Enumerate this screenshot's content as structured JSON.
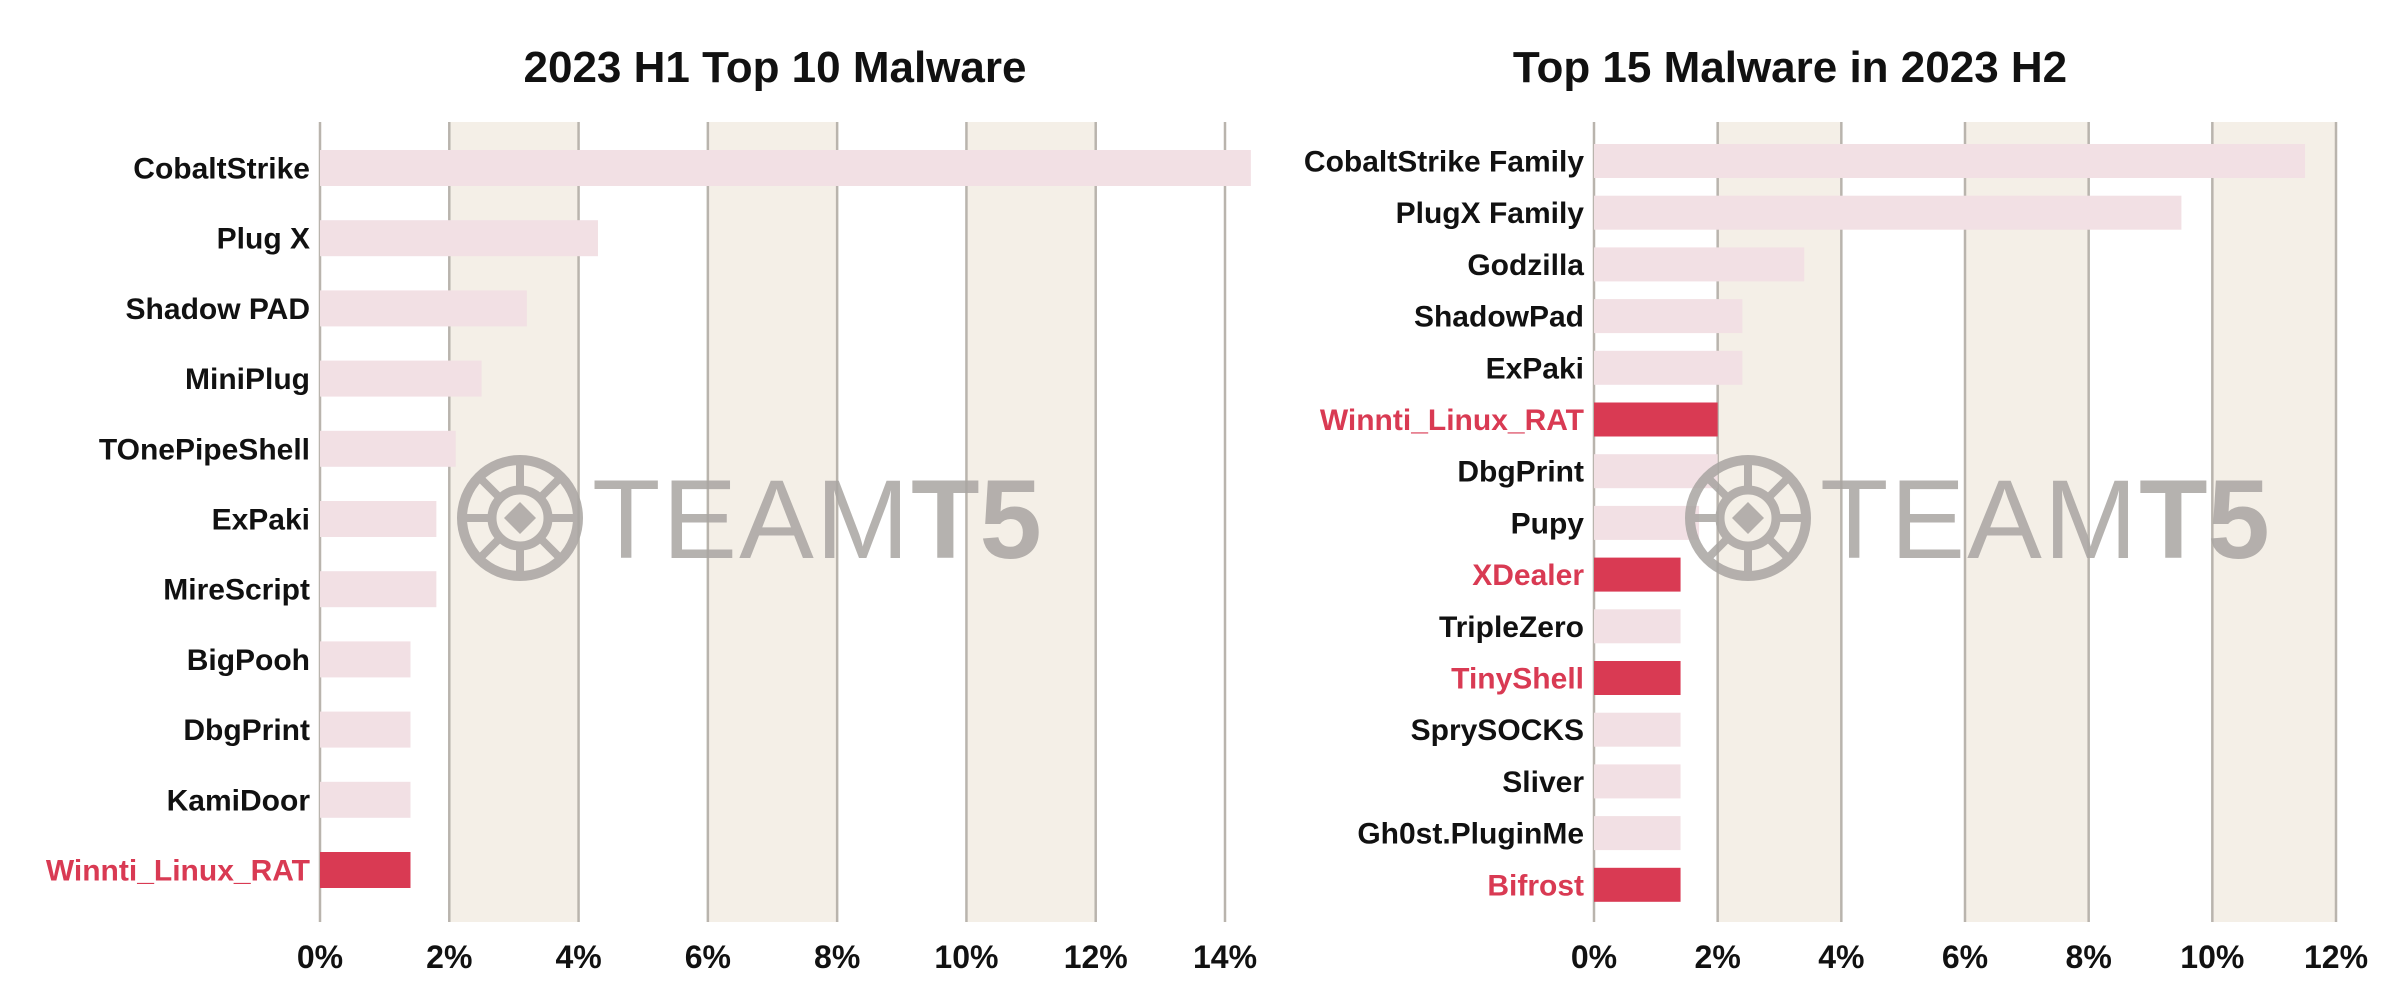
{
  "colors": {
    "band": "#f4efe7",
    "grid": "#b9b4ad",
    "bar_normal": "#f2e0e4",
    "bar_highlight": "#d93a53",
    "label_normal": "#111111",
    "label_highlight": "#d93a53",
    "watermark": "#a9a5a2"
  },
  "watermark": {
    "text_light": "TEAM",
    "text_bold": "T5"
  },
  "chart_data": [
    {
      "type": "bar",
      "orientation": "horizontal",
      "title": "2023 H1 Top 10 Malware",
      "xlabel": "",
      "ylabel": "",
      "xlim": [
        0,
        14
      ],
      "xticks": [
        0,
        2,
        4,
        6,
        8,
        10,
        12,
        14
      ],
      "tick_suffix": "%",
      "grid": true,
      "categories": [
        "CobaltStrike",
        "Plug X",
        "Shadow PAD",
        "MiniPlug",
        "TOnePipeShell",
        "ExPaki",
        "MireScript",
        "BigPooh",
        "DbgPrint",
        "KamiDoor",
        "Winnti_Linux_RAT"
      ],
      "values": [
        14.4,
        4.3,
        3.2,
        2.5,
        2.1,
        1.8,
        1.8,
        1.4,
        1.4,
        1.4,
        1.4
      ],
      "highlighted": [
        "Winnti_Linux_RAT"
      ]
    },
    {
      "type": "bar",
      "orientation": "horizontal",
      "title": "Top 15 Malware in 2023 H2",
      "xlabel": "",
      "ylabel": "",
      "xlim": [
        0,
        12
      ],
      "xticks": [
        0,
        2,
        4,
        6,
        8,
        10,
        12
      ],
      "tick_suffix": "%",
      "grid": true,
      "categories": [
        "CobaltStrike Family",
        "PlugX Family",
        "Godzilla",
        "ShadowPad",
        "ExPaki",
        "Winnti_Linux_RAT",
        "DbgPrint",
        "Pupy",
        "XDealer",
        "TripleZero",
        "TinyShell",
        "SprySOCKS",
        "Sliver",
        "Gh0st.PluginMe",
        "Bifrost"
      ],
      "values": [
        11.5,
        9.5,
        3.4,
        2.4,
        2.4,
        2.0,
        2.0,
        1.7,
        1.4,
        1.4,
        1.4,
        1.4,
        1.4,
        1.4,
        1.4
      ],
      "highlighted": [
        "Winnti_Linux_RAT",
        "XDealer",
        "TinyShell",
        "Bifrost"
      ]
    }
  ]
}
